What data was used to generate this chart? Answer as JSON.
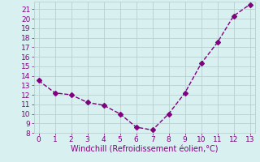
{
  "x": [
    0,
    1,
    2,
    3,
    4,
    5,
    6,
    7,
    8,
    9,
    10,
    11,
    12,
    13
  ],
  "y": [
    13.5,
    12.2,
    12.0,
    11.2,
    10.9,
    10.0,
    8.6,
    8.3,
    10.0,
    12.2,
    15.3,
    17.5,
    20.3,
    21.5
  ],
  "line_color": "#800080",
  "marker": "D",
  "marker_size": 3,
  "bg_color": "#d8f0f0",
  "grid_color": "#b8d0d0",
  "xlabel": "Windchill (Refroidissement éolien,°C)",
  "xlabel_color": "#800080",
  "tick_color": "#800080",
  "ylim": [
    8,
    21.8
  ],
  "xlim": [
    -0.3,
    13.3
  ],
  "yticks": [
    8,
    9,
    10,
    11,
    12,
    13,
    14,
    15,
    16,
    17,
    18,
    19,
    20,
    21
  ],
  "xticks": [
    0,
    1,
    2,
    3,
    4,
    5,
    6,
    7,
    8,
    9,
    10,
    11,
    12,
    13
  ],
  "line_width": 1.0,
  "xlabel_fontsize": 7.0,
  "tick_fontsize": 6.5
}
